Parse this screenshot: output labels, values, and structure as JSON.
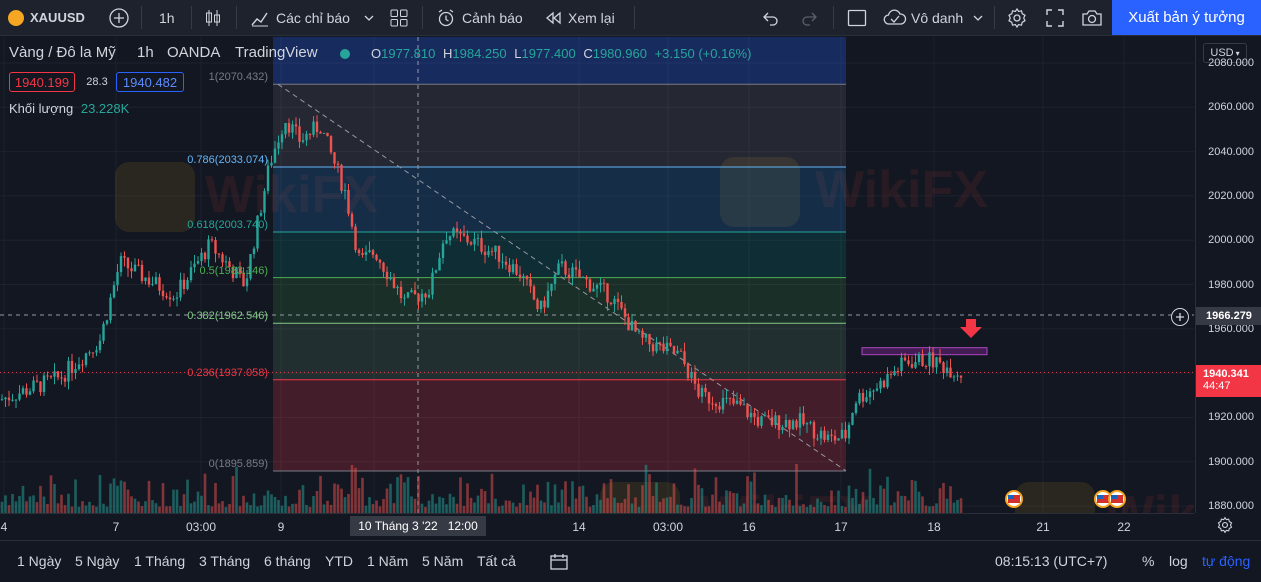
{
  "toolbar": {
    "symbol": "XAUUSD",
    "interval": "1h",
    "indicators": "Các chỉ báo",
    "alert": "Cảnh báo",
    "replay": "Xem lại",
    "layout_name": "Vô danh",
    "publish": "Xuất bản ý tưởng"
  },
  "legend": {
    "title": "Vàng / Đô la Mỹ",
    "interval": "1h",
    "source": "OANDA",
    "platform": "TradingView",
    "o_label": "O",
    "o_value": "1977.810",
    "h_label": "H",
    "h_value": "1984.250",
    "l_label": "L",
    "l_value": "1977.400",
    "c_label": "C",
    "c_value": "1980.960",
    "change": "+3.150 (+0.16%)",
    "bid": "1940.199",
    "spread": "28.3",
    "ask": "1940.482",
    "volume_label": "Khối lượng",
    "volume_value": "23.228K"
  },
  "fib_levels": [
    {
      "label": "1(2070.432)",
      "price": 2070.432,
      "color": "#787b86"
    },
    {
      "label": "0.786(2033.074)",
      "price": 2033.074,
      "color": "#64b5f6"
    },
    {
      "label": "0.618(2003.740)",
      "price": 2003.74,
      "color": "#26a69a"
    },
    {
      "label": "0.5(1983.146)",
      "price": 1983.146,
      "color": "#4caf50"
    },
    {
      "label": "0.382(1962.546)",
      "price": 1962.546,
      "color": "#81c784"
    },
    {
      "label": "0.236(1937.058)",
      "price": 1937.058,
      "color": "#f23645"
    },
    {
      "label": "0(1895.859)",
      "price": 1895.859,
      "color": "#787b86"
    }
  ],
  "price_axis": {
    "currency": "USD",
    "ticks": [
      "2080.000",
      "2060.000",
      "2040.000",
      "2020.000",
      "2000.000",
      "1980.000",
      "1960.000",
      "1940.000",
      "1920.000",
      "1900.000",
      "1880.000"
    ],
    "crosshair_price": "1966.279",
    "last_price": "1940.341",
    "countdown": "44:47"
  },
  "time_axis": {
    "ticks": [
      "4",
      "7",
      "03:00",
      "9",
      "14",
      "03:00",
      "16",
      "17",
      "18",
      "21",
      "22"
    ],
    "crosshair_label": "10 Tháng 3 '22   12:00"
  },
  "bottom_bar": {
    "ranges": [
      "1 Ngày",
      "5 Ngày",
      "1 Tháng",
      "3 Tháng",
      "6 tháng",
      "YTD",
      "1 Năm",
      "5 Năm",
      "Tất cả"
    ],
    "clock": "08:15:13 (UTC+7)",
    "percent": "%",
    "log": "log",
    "auto": "tự động"
  },
  "watermark": "WikiFX",
  "colors": {
    "up": "#26a69a",
    "down": "#ef5350",
    "accent": "#2962ff",
    "background": "#131722"
  }
}
